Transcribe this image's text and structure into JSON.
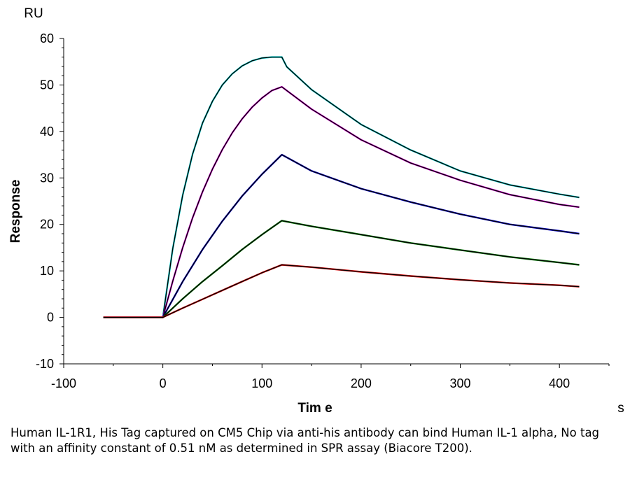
{
  "chart_data": {
    "type": "line",
    "xlabel": "Tim e",
    "ylabel": "Response",
    "y_unit": "RU",
    "x_unit": "s",
    "xlim": [
      -100,
      450
    ],
    "ylim": [
      -10,
      60
    ],
    "x_ticks": [
      -100,
      0,
      100,
      200,
      300,
      400
    ],
    "y_ticks": [
      -10,
      0,
      10,
      20,
      30,
      40,
      50,
      60
    ],
    "grid": false,
    "legend": "none",
    "series": [
      {
        "color": "#00c8c8",
        "fit_color": "#000000",
        "x": [
          -60,
          0,
          10,
          20,
          30,
          40,
          50,
          60,
          70,
          80,
          90,
          100,
          110,
          120,
          125,
          150,
          200,
          250,
          300,
          350,
          400,
          420
        ],
        "y": [
          0,
          0,
          14.8,
          26.3,
          35.1,
          41.8,
          46.5,
          50.0,
          52.4,
          54.1,
          55.2,
          55.8,
          56.0,
          56.0,
          53.9,
          49.0,
          41.5,
          36.0,
          31.5,
          28.5,
          26.5,
          25.8
        ]
      },
      {
        "color": "#d000d0",
        "fit_color": "#000000",
        "x": [
          -60,
          0,
          10,
          20,
          30,
          40,
          50,
          60,
          70,
          80,
          90,
          100,
          110,
          120,
          150,
          200,
          250,
          300,
          350,
          400,
          420
        ],
        "y": [
          0,
          0,
          7.8,
          15.0,
          21.4,
          27.0,
          31.9,
          36.1,
          39.7,
          42.7,
          45.2,
          47.2,
          48.8,
          49.6,
          44.8,
          38.2,
          33.2,
          29.5,
          26.4,
          24.3,
          23.7
        ]
      },
      {
        "color": "#0000d0",
        "fit_color": "#000000",
        "x": [
          -60,
          0,
          20,
          40,
          60,
          80,
          100,
          120,
          150,
          200,
          250,
          300,
          350,
          400,
          420
        ],
        "y": [
          0,
          0,
          7.7,
          14.6,
          20.7,
          26.1,
          30.8,
          35.0,
          31.5,
          27.7,
          24.8,
          22.2,
          20.0,
          18.6,
          18.0
        ]
      },
      {
        "color": "#008000",
        "fit_color": "#000000",
        "x": [
          -60,
          0,
          20,
          40,
          60,
          80,
          100,
          120,
          150,
          200,
          250,
          300,
          350,
          400,
          420
        ],
        "y": [
          0,
          0,
          4.0,
          7.7,
          11.1,
          14.6,
          17.8,
          20.8,
          19.6,
          17.8,
          16.0,
          14.5,
          13.0,
          11.8,
          11.3
        ]
      },
      {
        "color": "#e00000",
        "fit_color": "#000000",
        "x": [
          -60,
          0,
          20,
          40,
          60,
          80,
          100,
          120,
          150,
          200,
          250,
          300,
          350,
          400,
          420
        ],
        "y": [
          0,
          0,
          2.0,
          3.9,
          5.8,
          7.7,
          9.6,
          11.3,
          10.8,
          9.8,
          8.9,
          8.1,
          7.4,
          6.9,
          6.6
        ]
      }
    ]
  },
  "caption": "Human IL-1R1, His Tag captured on CM5 Chip via anti-his antibody can bind Human IL-1 alpha, No tag with an affinity constant of 0.51 nM as determined in SPR assay (Biacore T200)."
}
